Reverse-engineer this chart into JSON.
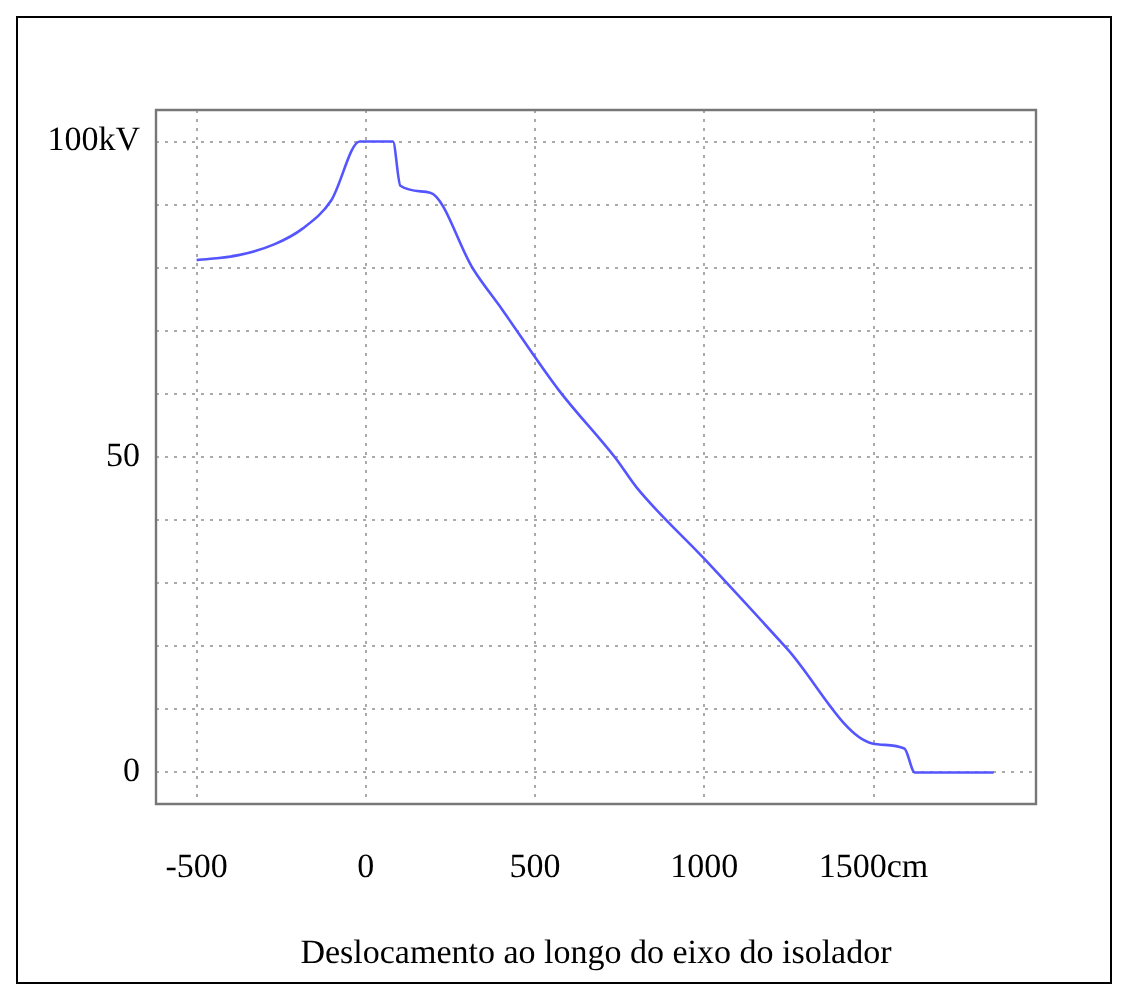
{
  "chart_data": {
    "type": "line",
    "xlabel": "Deslocamento ao longo do eixo do isolador",
    "x": [
      -500,
      -376,
      -271,
      -187,
      -102,
      -18,
      80,
      102,
      190,
      317,
      401,
      570,
      738,
      801,
      1001,
      1243,
      1496,
      1591,
      1622,
      1855
    ],
    "series": [
      {
        "color": "#5555ff",
        "values": [
          81.2,
          82,
          83.7,
          86.2,
          90.7,
          100,
          100,
          93,
          91.9,
          79.8,
          73.5,
          60.6,
          49.8,
          45.1,
          33.8,
          19.7,
          4.6,
          3.8,
          0,
          0
        ]
      }
    ],
    "xlim": [
      -620,
      1980
    ],
    "ylim": [
      -5,
      105
    ],
    "xticks": [
      {
        "value": -500,
        "label": "-500"
      },
      0,
      500,
      1000,
      {
        "value": 1500,
        "label": "1500cm"
      }
    ],
    "yticks": [
      0,
      {
        "value": 10,
        "label": null
      },
      {
        "value": 20,
        "label": null
      },
      {
        "value": 30,
        "label": null
      },
      {
        "value": 40,
        "label": null
      },
      50,
      {
        "value": 60,
        "label": null
      },
      {
        "value": 70,
        "label": null
      },
      {
        "value": 80,
        "label": null
      },
      {
        "value": 90,
        "label": null
      },
      {
        "value": 100,
        "label": "100kV"
      }
    ],
    "grid": true,
    "marker": "none",
    "line_style": "solid",
    "legend": false
  }
}
